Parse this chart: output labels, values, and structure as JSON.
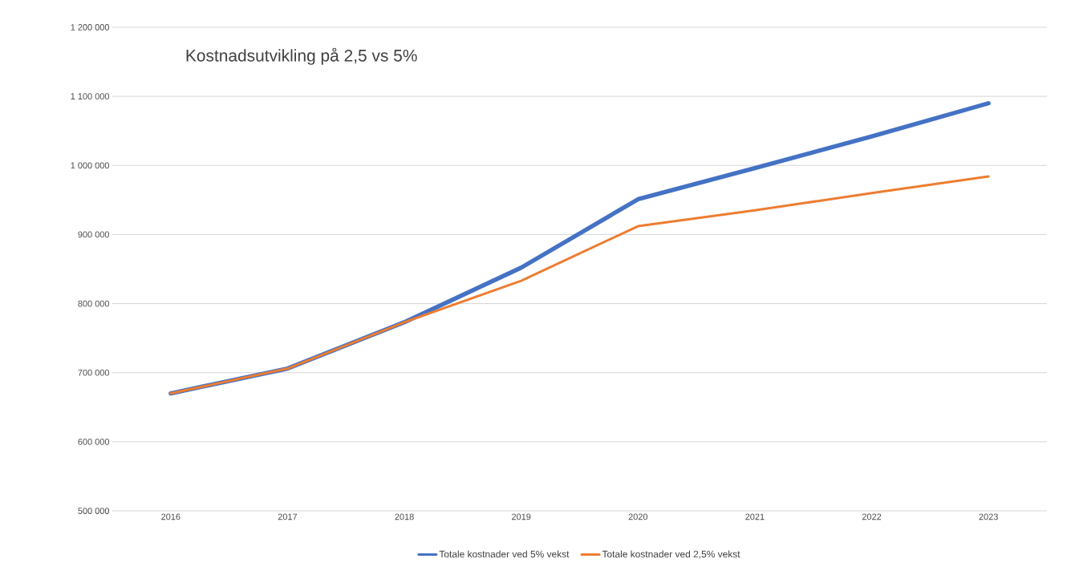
{
  "chart_data": {
    "type": "line",
    "title": "Kostnadsutvikling på 2,5 vs 5%",
    "categories": [
      "2016",
      "2017",
      "2018",
      "2019",
      "2020",
      "2021",
      "2022",
      "2023"
    ],
    "series": [
      {
        "name": "Totale kostnader ved 5% vekst",
        "color": "#4472c4",
        "values": [
          670000,
          706000,
          773000,
          852000,
          951000,
          996000,
          1042000,
          1090000
        ]
      },
      {
        "name": "Totale kostnader ved 2,5% vekst",
        "color": "#ed7d31",
        "values": [
          670000,
          706000,
          773000,
          833000,
          912000,
          935000,
          960000,
          984000
        ]
      }
    ],
    "ylim": [
      500000,
      1200000
    ],
    "yticks": [
      {
        "value": 500000,
        "label": "500 000"
      },
      {
        "value": 600000,
        "label": "600 000"
      },
      {
        "value": 700000,
        "label": "700 000"
      },
      {
        "value": 800000,
        "label": "800 000"
      },
      {
        "value": 900000,
        "label": "900 000"
      },
      {
        "value": 1000000,
        "label": "1 000 000"
      },
      {
        "value": 1100000,
        "label": "1 100 000"
      },
      {
        "value": 1200000,
        "label": "1 200 000"
      }
    ],
    "grid": "y",
    "legend": "bottom",
    "marker": "none",
    "line_style": "solid"
  }
}
